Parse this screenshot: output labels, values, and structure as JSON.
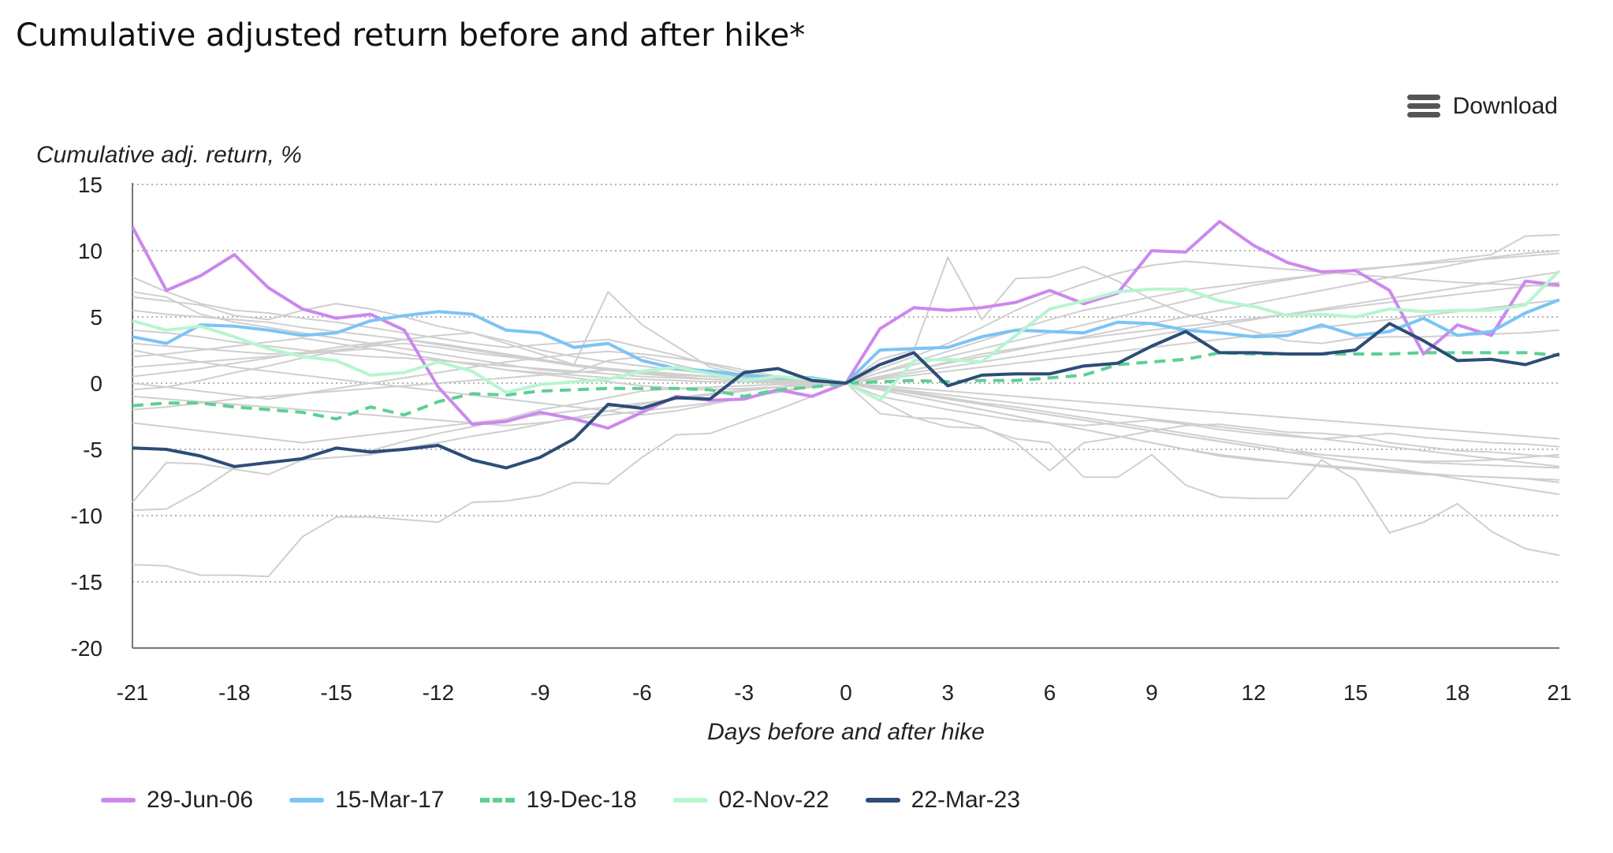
{
  "title": "Cumulative adjusted return before and after hike*",
  "download_label": "Download",
  "chart_data": {
    "type": "line",
    "ylabel": "Cumulative adj. return, %",
    "xlabel": "Days before and after hike",
    "xlim": [
      -21,
      21
    ],
    "ylim": [
      -20,
      15
    ],
    "xticks": [
      -21,
      -18,
      -15,
      -12,
      -9,
      -6,
      -3,
      0,
      3,
      6,
      9,
      12,
      15,
      18,
      21
    ],
    "yticks": [
      15,
      10,
      5,
      0,
      -5,
      -10,
      -15,
      -20
    ],
    "grid": "horizontal-dotted",
    "legend_position": "bottom",
    "x": [
      -21,
      -20,
      -19,
      -18,
      -17,
      -16,
      -15,
      -14,
      -13,
      -12,
      -11,
      -10,
      -9,
      -8,
      -7,
      -6,
      -5,
      -4,
      -3,
      -2,
      -1,
      0,
      1,
      2,
      3,
      4,
      5,
      6,
      7,
      8,
      9,
      10,
      11,
      12,
      13,
      14,
      15,
      16,
      17,
      18,
      19,
      20,
      21
    ],
    "series": [
      {
        "name": "29-Jun-06",
        "color": "#cc88ee",
        "dashed": false,
        "values": [
          11.8,
          7.0,
          8.1,
          9.7,
          7.2,
          5.6,
          4.9,
          5.2,
          4.0,
          -0.3,
          -3.1,
          -2.9,
          -2.2,
          -2.7,
          -3.4,
          -2.2,
          -1.0,
          -1.3,
          -1.2,
          -0.5,
          -1.0,
          0.0,
          4.1,
          5.7,
          5.5,
          5.7,
          6.1,
          7.0,
          6.0,
          6.8,
          10.0,
          9.9,
          12.2,
          10.4,
          9.1,
          8.4,
          8.5,
          7.0,
          2.2,
          4.4,
          3.6,
          7.7,
          7.4
        ]
      },
      {
        "name": "15-Mar-17",
        "color": "#7bc4f5",
        "dashed": false,
        "values": [
          3.5,
          3.0,
          4.4,
          4.3,
          4.0,
          3.6,
          3.8,
          4.7,
          5.1,
          5.4,
          5.2,
          4.0,
          3.8,
          2.7,
          3.0,
          1.7,
          1.1,
          0.9,
          0.6,
          0.4,
          0.4,
          0.0,
          2.5,
          2.6,
          2.7,
          3.5,
          4.0,
          3.9,
          3.8,
          4.6,
          4.5,
          4.0,
          3.8,
          3.5,
          3.6,
          4.4,
          3.6,
          3.9,
          4.9,
          3.6,
          3.9,
          5.3,
          6.3
        ]
      },
      {
        "name": "19-Dec-18",
        "color": "#5ccf95",
        "dashed": true,
        "values": [
          -1.7,
          -1.5,
          -1.5,
          -1.8,
          -2.0,
          -2.2,
          -2.7,
          -1.8,
          -2.4,
          -1.4,
          -0.8,
          -0.9,
          -0.6,
          -0.5,
          -0.4,
          -0.4,
          -0.4,
          -0.5,
          -1.0,
          -0.5,
          -0.3,
          0.0,
          0.1,
          0.2,
          0.1,
          0.2,
          0.2,
          0.4,
          0.6,
          1.4,
          1.6,
          1.8,
          2.3,
          2.2,
          2.2,
          2.2,
          2.2,
          2.2,
          2.3,
          2.3,
          2.3,
          2.3,
          2.1
        ]
      },
      {
        "name": "02-Nov-22",
        "color": "#b6f5d0",
        "dashed": false,
        "values": [
          4.7,
          4.0,
          4.3,
          3.5,
          2.6,
          2.0,
          1.7,
          0.6,
          0.8,
          1.6,
          0.9,
          -0.7,
          -0.1,
          0.1,
          0.3,
          0.9,
          1.2,
          0.7,
          0.2,
          0.5,
          0.3,
          0.0,
          -1.3,
          1.7,
          1.8,
          1.6,
          3.6,
          5.6,
          6.2,
          6.9,
          7.1,
          7.1,
          6.2,
          5.8,
          5.1,
          5.2,
          5.0,
          5.6,
          5.4,
          5.5,
          5.5,
          5.9,
          8.5
        ]
      },
      {
        "name": "22-Mar-23",
        "color": "#2c4d75",
        "dashed": false,
        "values": [
          -4.9,
          -5.0,
          -5.5,
          -6.3,
          -6.0,
          -5.7,
          -4.9,
          -5.2,
          -5.0,
          -4.7,
          -5.8,
          -6.4,
          -5.6,
          -4.2,
          -1.6,
          -1.9,
          -1.1,
          -1.2,
          0.8,
          1.1,
          0.2,
          0.0,
          1.4,
          2.3,
          -0.2,
          0.6,
          0.7,
          0.7,
          1.3,
          1.5,
          2.8,
          3.9,
          2.3,
          2.3,
          2.2,
          2.2,
          2.5,
          4.5,
          3.2,
          1.7,
          1.8,
          1.4,
          2.2
        ]
      }
    ],
    "background_series": [
      [
        8.0,
        6.9,
        6.0,
        5.5,
        5.3,
        4.9,
        4.6,
        4.2,
        3.8,
        3.4,
        3.0,
        2.7,
        2.9,
        3.1,
        3.3,
        2.7,
        2.1,
        1.4,
        0.8,
        0.4,
        0.2,
        0.0,
        -1.0,
        -1.5,
        -2.0,
        -2.4,
        -2.8,
        -3.0,
        -3.2,
        -3.0,
        -2.8,
        -3.1,
        -3.5,
        -3.8,
        -4.0,
        -4.2,
        -4.0,
        -3.8,
        -4.1,
        -4.3,
        -4.5,
        -4.6,
        -4.8
      ],
      [
        6.5,
        6.2,
        5.9,
        5.1,
        4.8,
        5.5,
        6.0,
        5.6,
        5.0,
        4.3,
        3.8,
        3.2,
        2.5,
        2.0,
        1.6,
        1.3,
        1.0,
        0.7,
        0.5,
        0.3,
        0.1,
        0.0,
        1.1,
        2.0,
        3.0,
        4.2,
        5.5,
        6.6,
        7.5,
        8.3,
        8.9,
        9.2,
        9.0,
        8.8,
        8.6,
        8.4,
        8.2,
        8.0,
        7.8,
        7.6,
        7.5,
        7.4,
        7.3
      ],
      [
        5.5,
        5.2,
        5.0,
        4.8,
        4.6,
        4.2,
        3.9,
        3.6,
        3.3,
        2.9,
        2.5,
        2.1,
        1.7,
        1.3,
        1.0,
        0.8,
        0.6,
        0.5,
        0.4,
        0.2,
        0.1,
        0.0,
        0.8,
        1.6,
        2.4,
        3.2,
        4.0,
        4.8,
        5.5,
        6.0,
        6.5,
        7.0,
        7.3,
        7.6,
        7.9,
        8.2,
        8.5,
        8.8,
        9.1,
        9.4,
        9.7,
        11.1,
        11.2
      ],
      [
        4.0,
        3.8,
        3.5,
        3.1,
        2.8,
        2.5,
        2.2,
        2.0,
        1.9,
        1.7,
        1.5,
        1.3,
        1.1,
        0.9,
        0.7,
        0.5,
        0.4,
        0.3,
        0.2,
        0.1,
        0.0,
        0.0,
        -0.3,
        -0.7,
        -1.1,
        -1.5,
        -1.8,
        -2.2,
        -2.6,
        -3.0,
        -3.4,
        -3.8,
        -4.2,
        -4.6,
        -5.0,
        -5.4,
        -5.6,
        -5.8,
        -6.0,
        -6.1,
        -6.2,
        -6.3,
        -6.4
      ],
      [
        3.0,
        2.8,
        2.6,
        2.4,
        2.2,
        2.3,
        2.5,
        2.8,
        3.0,
        2.7,
        2.3,
        2.0,
        1.7,
        1.4,
        1.1,
        0.9,
        0.7,
        0.5,
        0.3,
        0.2,
        0.1,
        0.0,
        0.5,
        1.0,
        1.6,
        2.2,
        2.6,
        3.0,
        3.4,
        3.7,
        4.0,
        4.3,
        4.6,
        4.9,
        5.2,
        5.5,
        5.8,
        6.1,
        6.4,
        6.7,
        7.0,
        7.3,
        7.6
      ],
      [
        2.0,
        2.2,
        2.5,
        2.8,
        3.1,
        3.4,
        3.0,
        2.6,
        2.2,
        1.8,
        1.4,
        1.0,
        0.7,
        0.4,
        0.1,
        -0.2,
        -0.4,
        -0.5,
        -0.4,
        -0.3,
        -0.1,
        0.0,
        -0.5,
        -1.0,
        -1.5,
        -2.0,
        -2.5,
        -3.0,
        -3.5,
        -4.0,
        -4.5,
        -5.0,
        -5.4,
        -5.7,
        -6.0,
        -6.3,
        -6.5,
        -6.7,
        -6.9,
        -7.0,
        -7.1,
        -7.2,
        -7.5
      ],
      [
        1.2,
        1.4,
        1.6,
        1.8,
        2.0,
        2.2,
        2.4,
        2.6,
        2.2,
        1.8,
        1.4,
        1.0,
        0.8,
        0.6,
        0.4,
        0.3,
        0.2,
        0.1,
        0.1,
        0.0,
        0.0,
        0.0,
        0.4,
        0.8,
        1.2,
        1.6,
        2.0,
        2.4,
        2.8,
        3.2,
        3.6,
        4.0,
        4.4,
        4.8,
        5.2,
        5.6,
        6.0,
        6.4,
        6.8,
        7.2,
        7.6,
        8.0,
        8.4
      ],
      [
        0.5,
        0.8,
        1.1,
        1.5,
        1.9,
        2.3,
        2.7,
        3.0,
        3.3,
        3.0,
        2.6,
        2.2,
        1.8,
        1.4,
        1.0,
        0.7,
        0.5,
        0.3,
        0.2,
        0.1,
        0.0,
        0.0,
        -0.4,
        -0.8,
        -1.2,
        -1.6,
        -2.0,
        -2.4,
        -2.8,
        -3.2,
        -3.6,
        -4.0,
        -4.4,
        -4.8,
        -5.2,
        -5.6,
        -6.0,
        -6.4,
        -6.8,
        -7.2,
        -7.6,
        -8.0,
        -8.4
      ],
      [
        0.0,
        -0.3,
        -0.6,
        -0.9,
        -1.2,
        -0.8,
        -0.4,
        0.0,
        0.4,
        0.8,
        1.2,
        1.6,
        1.9,
        2.2,
        2.4,
        2.2,
        1.9,
        1.5,
        1.0,
        0.5,
        0.2,
        0.0,
        0.5,
        1.0,
        1.5,
        2.0,
        2.5,
        3.0,
        3.5,
        4.0,
        4.5,
        5.0,
        5.5,
        6.0,
        6.5,
        7.0,
        7.5,
        8.0,
        8.5,
        9.0,
        9.5,
        9.8,
        10.0
      ],
      [
        -1.0,
        -1.2,
        -1.4,
        -1.6,
        -1.8,
        -2.0,
        -2.2,
        -2.4,
        -2.6,
        -2.8,
        -3.0,
        -3.2,
        -3.0,
        -2.7,
        -2.4,
        -2.1,
        -1.8,
        -1.5,
        -1.1,
        -0.7,
        -0.3,
        0.0,
        -0.3,
        -0.6,
        -0.9,
        -1.2,
        -1.5,
        -1.8,
        -2.1,
        -2.4,
        -2.7,
        -3.0,
        -3.3,
        -3.6,
        -3.9,
        -4.2,
        -4.5,
        -4.8,
        -5.1,
        -5.4,
        -5.7,
        -6.0,
        -6.3
      ],
      [
        -2.0,
        -1.8,
        -1.5,
        -1.2,
        -1.0,
        -0.8,
        -0.6,
        -0.4,
        -0.2,
        0.0,
        0.2,
        0.4,
        0.6,
        0.8,
        1.0,
        0.9,
        0.7,
        0.5,
        0.3,
        0.2,
        0.1,
        0.0,
        0.3,
        0.6,
        0.9,
        1.2,
        1.5,
        1.8,
        2.1,
        2.4,
        2.7,
        3.0,
        3.3,
        3.6,
        3.9,
        4.2,
        4.5,
        4.8,
        5.1,
        5.4,
        5.7,
        6.0,
        6.3
      ],
      [
        -3.0,
        -3.3,
        -3.6,
        -3.9,
        -4.2,
        -4.5,
        -4.2,
        -3.9,
        -3.6,
        -3.3,
        -3.0,
        -2.7,
        -2.4,
        -2.1,
        -1.8,
        -1.5,
        -1.2,
        -0.9,
        -0.6,
        -0.3,
        -0.1,
        0.0,
        -0.2,
        -0.4,
        -0.6,
        -0.8,
        -1.0,
        -1.2,
        -1.4,
        -1.6,
        -1.8,
        -2.0,
        -2.2,
        -2.4,
        -2.6,
        -2.8,
        -3.0,
        -3.2,
        -3.4,
        -3.6,
        -3.8,
        -4.0,
        -4.2
      ],
      [
        -9.0,
        -6.0,
        -6.1,
        -6.5,
        -6.9,
        -5.8,
        -4.9,
        -5.1,
        -4.4,
        -3.8,
        -3.3,
        -2.7,
        -2.0,
        -1.6,
        -1.1,
        -0.6,
        -0.4,
        -0.3,
        -0.2,
        -0.1,
        -0.1,
        0.0,
        -0.5,
        -1.0,
        -1.5,
        -2.0,
        -2.5,
        -3.0,
        -3.5,
        -4.0,
        -4.5,
        -5.0,
        -5.5,
        -5.8,
        -6.0,
        -6.2,
        -6.4,
        -6.6,
        -6.8,
        -7.0,
        -7.1,
        -7.2,
        -7.3
      ],
      [
        -9.6,
        -9.5,
        -8.1,
        -6.4,
        -5.9,
        -5.8,
        -5.6,
        -5.4,
        -4.9,
        -4.5,
        -4.0,
        -3.6,
        -3.1,
        -2.6,
        -2.1,
        -1.6,
        -1.1,
        -0.8,
        -0.5,
        -0.3,
        -0.1,
        0.0,
        -1.3,
        -2.6,
        -2.7,
        -3.3,
        -4.5,
        -6.6,
        -4.5,
        -4.1,
        -3.6,
        -3.2,
        -3.1,
        -3.4,
        -3.7,
        -3.8,
        -4.0,
        -4.5,
        -4.8,
        -5.1,
        -5.2,
        -5.4,
        -5.6
      ],
      [
        -13.7,
        -13.8,
        -14.5,
        -14.5,
        -14.6,
        -11.6,
        -10.1,
        -10.1,
        -10.3,
        -10.5,
        -9.0,
        -8.9,
        -8.5,
        -7.5,
        -7.6,
        -5.6,
        -3.9,
        -3.8,
        -2.9,
        -2.0,
        -1.0,
        0.0,
        -2.3,
        -2.6,
        -3.3,
        -3.4,
        -4.2,
        -4.5,
        -7.1,
        -7.1,
        -5.4,
        -7.7,
        -8.6,
        -8.7,
        -8.7,
        -5.8,
        -7.3,
        -11.3,
        -10.5,
        -9.1,
        -11.2,
        -12.5,
        -13.0
      ],
      [
        6.9,
        6.5,
        5.2,
        4.6,
        4.2,
        3.8,
        3.4,
        3.0,
        2.6,
        2.2,
        1.8,
        1.4,
        1.0,
        0.8,
        1.7,
        2.0,
        1.4,
        0.8,
        0.3,
        0.1,
        0.0,
        0.0,
        1.8,
        2.5,
        9.5,
        4.8,
        7.9,
        8.0,
        8.8,
        7.7,
        6.3,
        5.2,
        4.6,
        3.9,
        3.2,
        3.0,
        3.4,
        3.5,
        3.5,
        3.6,
        3.7,
        3.8,
        4.0
      ],
      [
        -0.5,
        -0.3,
        0.2,
        0.8,
        1.3,
        1.9,
        2.4,
        2.9,
        3.3,
        3.6,
        3.8,
        3.0,
        2.2,
        1.4,
        6.9,
        4.4,
        2.8,
        1.2,
        0.6,
        0.3,
        0.1,
        0.0,
        0.8,
        1.4,
        2.0,
        2.6,
        3.2,
        3.8,
        4.4,
        5.0,
        5.6,
        6.2,
        6.8,
        7.4,
        7.8,
        8.2,
        8.6,
        8.8,
        9.0,
        9.2,
        9.4,
        9.6,
        9.8
      ],
      [
        2.5,
        2.0,
        1.6,
        1.2,
        0.9,
        0.6,
        0.3,
        0.0,
        -0.3,
        -0.6,
        -0.9,
        -1.2,
        -1.5,
        -1.8,
        -2.1,
        -2.4,
        -2.1,
        -1.6,
        -1.1,
        -0.6,
        -0.2,
        0.0,
        -0.4,
        -0.8,
        -1.2,
        -1.6,
        -2.0,
        -2.4,
        -2.8,
        -3.2,
        -3.6,
        -4.0,
        -4.4,
        -4.8,
        -5.2,
        -5.4,
        -5.6,
        -5.8,
        -5.9,
        -5.9,
        -5.8,
        -5.6,
        -5.4
      ]
    ]
  }
}
